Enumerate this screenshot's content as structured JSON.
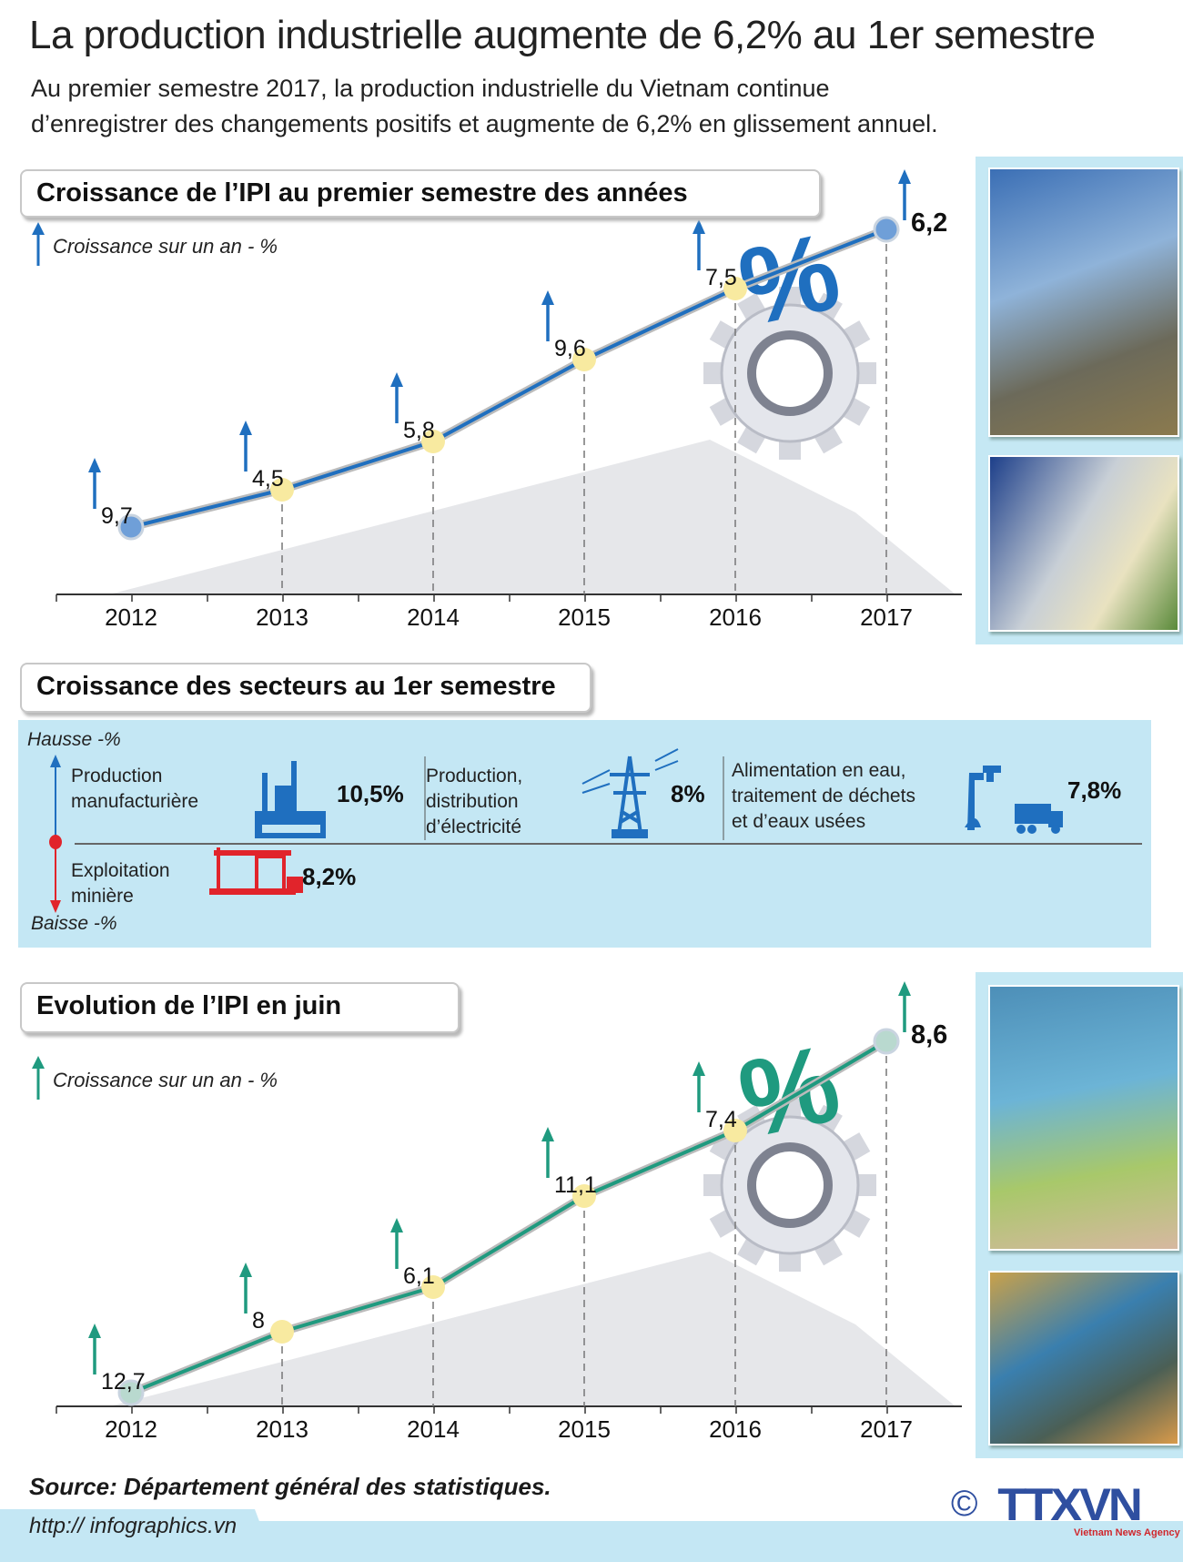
{
  "header": {
    "title": "La production industrielle augmente de 6,2% au 1er semestre",
    "subtitle_lines": [
      "Au premier semestre 2017, la production industrielle du Vietnam continue",
      "d’enregistrer des changements positifs et augmente de 6,2% en glissement annuel."
    ]
  },
  "chart_data": [
    {
      "type": "line",
      "title": "Croissance de l’IPI au premier semestre des années",
      "ylabel": "Croissance sur un an - %",
      "categories": [
        "2012",
        "2013",
        "2014",
        "2015",
        "2016",
        "2017"
      ],
      "values": [
        9.7,
        4.5,
        5.8,
        9.6,
        7.5,
        6.2
      ],
      "value_labels": [
        "9,7",
        "4,5",
        "5,8",
        "9,6",
        "7,5",
        "6,2"
      ],
      "line_color": "#1f6fbf",
      "arrow_color": "#1f6fbf"
    },
    {
      "type": "line",
      "title": "Evolution de l’IPI en juin",
      "ylabel": "Croissance sur un an - %",
      "categories": [
        "2012",
        "2013",
        "2014",
        "2015",
        "2016",
        "2017"
      ],
      "values": [
        12.7,
        8,
        6.1,
        11.1,
        7.4,
        8.6
      ],
      "value_labels": [
        "12,7",
        "8",
        "6,1",
        "11,1",
        "7,4",
        "8,6"
      ],
      "line_color": "#1f9a7f",
      "arrow_color": "#1f9a7f"
    }
  ],
  "sectors": {
    "title": "Croissance des secteurs au 1er semestre",
    "up_label": "Hausse -%",
    "down_label": "Baisse -%",
    "items": [
      {
        "label_lines": [
          "Production",
          "manufacturière"
        ],
        "value": "10,5%",
        "direction": "up",
        "icon": "factory-icon"
      },
      {
        "label_lines": [
          "Production,",
          "distribution",
          "d’électricité"
        ],
        "value": "8%",
        "direction": "up",
        "icon": "power-tower-icon"
      },
      {
        "label_lines": [
          "Alimentation en eau,",
          "traitement de déchets",
          "et d’eaux usées"
        ],
        "value": "7,8%",
        "direction": "up",
        "icon": "water-truck-icon"
      },
      {
        "label_lines": [
          "Exploitation",
          "minière"
        ],
        "value": "8,2%",
        "direction": "down",
        "icon": "oil-pump-icon"
      }
    ],
    "colors": {
      "up": "#1f6fbf",
      "down": "#e1242b",
      "band": "#c4e7f4"
    }
  },
  "footer": {
    "source": "Source: Département général des statistiques.",
    "url": "http:// infographics.vn",
    "logo_text": "TTXVN",
    "logo_sub": "Vietnam News Agency",
    "copyright": "©"
  }
}
